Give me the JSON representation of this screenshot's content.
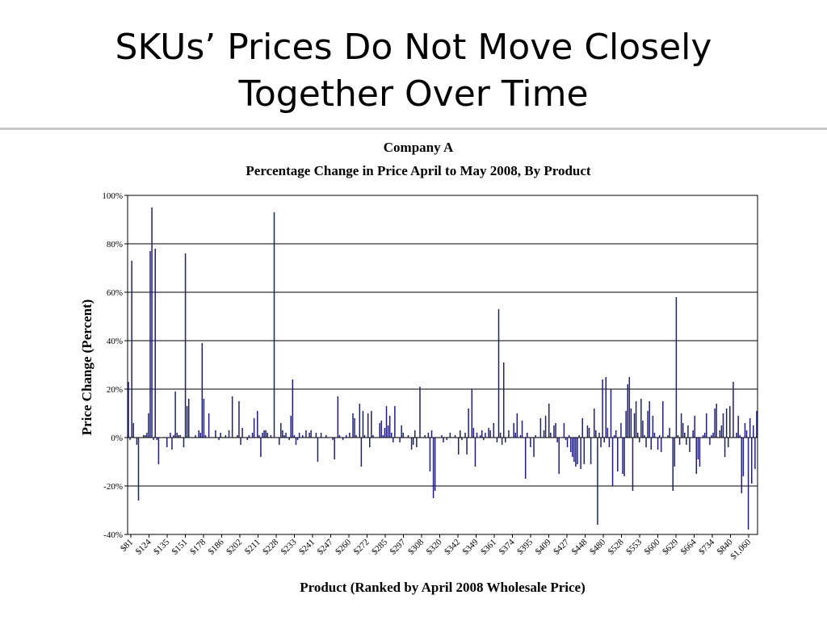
{
  "slide": {
    "title": "SKUs’ Prices Do Not Move Closely\nTogether Over Time"
  },
  "chart_data": {
    "type": "bar",
    "title": "Company A",
    "subtitle": "Percentage Change in Price April to May 2008, By Product",
    "xlabel": "Product (Ranked by April 2008 Wholesale Price)",
    "ylabel": "Price Change (Percent)",
    "ylim": [
      -40,
      100
    ],
    "yticks": [
      "100%",
      "80%",
      "60%",
      "40%",
      "20%",
      "0%",
      "-20%",
      "-40%"
    ],
    "grid": true,
    "bar_color": "#1f1f7a",
    "x_tick_labels": [
      "$81",
      "$124",
      "$135",
      "$151",
      "$178",
      "$186",
      "$202",
      "$211",
      "$228",
      "$233",
      "$241",
      "$247",
      "$260",
      "$272",
      "$285",
      "$297",
      "$308",
      "$320",
      "$342",
      "$349",
      "$361",
      "$374",
      "$395",
      "$409",
      "$427",
      "$448",
      "$480",
      "$528",
      "$553",
      "$600",
      "$629",
      "$664",
      "$734",
      "$840",
      "$1,060"
    ],
    "values": [
      23,
      -1,
      73,
      6,
      0,
      -3,
      -26,
      0,
      0,
      1,
      1,
      2,
      10,
      77,
      95,
      -1,
      78,
      -1,
      -11,
      0,
      0,
      0,
      0,
      -4,
      0,
      2,
      -5,
      1,
      19,
      2,
      1,
      1,
      0,
      -4,
      76,
      13,
      16,
      0,
      0,
      0,
      1,
      0,
      3,
      2,
      39,
      16,
      1,
      0,
      10,
      0,
      0,
      0,
      3,
      0,
      -1,
      2,
      0,
      0,
      1,
      0,
      3,
      0,
      17,
      0,
      0,
      1,
      15,
      -3,
      4,
      0,
      0,
      -1,
      1,
      0,
      2,
      8,
      0,
      11,
      1,
      -8,
      2,
      3,
      3,
      2,
      0,
      1,
      0,
      93,
      0,
      0,
      -3,
      6,
      3,
      1,
      2,
      0,
      -1,
      9,
      24,
      1,
      -3,
      -1,
      2,
      0,
      1,
      0,
      3,
      0,
      2,
      3,
      0,
      0,
      2,
      -10,
      0,
      2,
      0,
      0,
      1,
      0,
      0,
      0,
      -1,
      -9,
      0,
      17,
      1,
      0,
      -1,
      0,
      1,
      0,
      2,
      0,
      10,
      8,
      1,
      0,
      14,
      -12,
      11,
      1,
      0,
      10,
      -4,
      11,
      1,
      0,
      0,
      0,
      6,
      7,
      1,
      4,
      13,
      5,
      9,
      2,
      -2,
      13,
      0,
      0,
      -2,
      5,
      2,
      0,
      0,
      1,
      0,
      -5,
      -3,
      3,
      -4,
      0,
      21,
      0,
      0,
      1,
      0,
      2,
      -14,
      3,
      -25,
      -22,
      0,
      0,
      0,
      1,
      -2,
      0,
      -1,
      0,
      2,
      0,
      0,
      1,
      0,
      -7,
      3,
      -1,
      0,
      2,
      -7,
      12,
      0,
      20,
      4,
      -12,
      2,
      0,
      1,
      3,
      -1,
      2,
      0,
      4,
      3,
      0,
      6,
      0,
      -2,
      53,
      2,
      -3,
      31,
      -2,
      0,
      3,
      0,
      0,
      6,
      2,
      10,
      0,
      1,
      7,
      0,
      -17,
      2,
      0,
      -4,
      0,
      -8,
      1,
      0,
      0,
      8,
      0,
      3,
      9,
      0,
      14,
      2,
      0,
      5,
      6,
      -2,
      -15,
      0,
      0,
      6,
      -1,
      -4,
      1,
      -6,
      -8,
      -10,
      -12,
      -11,
      1,
      -13,
      8,
      -11,
      0,
      5,
      4,
      -11,
      0,
      12,
      3,
      -36,
      2,
      -4,
      24,
      -2,
      25,
      4,
      -4,
      20,
      -20,
      1,
      3,
      -14,
      0,
      6,
      -15,
      -16,
      11,
      22,
      25,
      12,
      -22,
      10,
      15,
      2,
      -2,
      16,
      7,
      1,
      -4,
      11,
      15,
      -5,
      9,
      2,
      0,
      -5,
      1,
      -6,
      15,
      0,
      0,
      1,
      4,
      0,
      -22,
      -12,
      58,
      1,
      -3,
      10,
      6,
      2,
      -3,
      5,
      -6,
      0,
      3,
      9,
      -15,
      -9,
      -12,
      0,
      1,
      2,
      10,
      0,
      -3,
      1,
      2,
      12,
      14,
      0,
      3,
      5,
      10,
      -8,
      12,
      -4,
      13,
      0,
      23,
      0,
      2,
      9,
      1,
      -23,
      -16,
      6,
      3,
      -38,
      8,
      -19,
      5,
      -13,
      11
    ]
  }
}
